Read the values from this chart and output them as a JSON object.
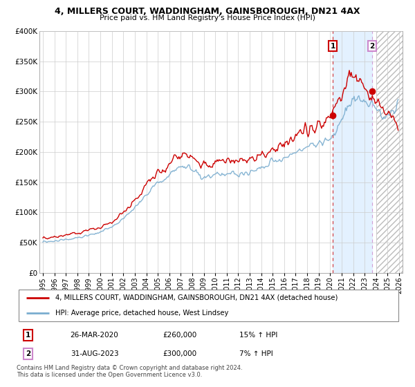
{
  "title": "4, MILLERS COURT, WADDINGHAM, GAINSBOROUGH, DN21 4AX",
  "subtitle": "Price paid vs. HM Land Registry's House Price Index (HPI)",
  "grid_color": "#cccccc",
  "line1_color": "#cc0000",
  "line2_color": "#7aadcf",
  "ylim": [
    0,
    400000
  ],
  "yticks": [
    0,
    50000,
    100000,
    150000,
    200000,
    250000,
    300000,
    350000,
    400000
  ],
  "ytick_labels": [
    "£0",
    "£50K",
    "£100K",
    "£150K",
    "£200K",
    "£250K",
    "£300K",
    "£350K",
    "£400K"
  ],
  "legend1_label": "4, MILLERS COURT, WADDINGHAM, GAINSBOROUGH, DN21 4AX (detached house)",
  "legend2_label": "HPI: Average price, detached house, West Lindsey",
  "transaction1_date": "26-MAR-2020",
  "transaction1_price": "£260,000",
  "transaction1_hpi": "15% ↑ HPI",
  "transaction2_date": "31-AUG-2023",
  "transaction2_price": "£300,000",
  "transaction2_hpi": "7% ↑ HPI",
  "footnote": "Contains HM Land Registry data © Crown copyright and database right 2024.\nThis data is licensed under the Open Government Licence v3.0.",
  "shade_start": 2020.23,
  "shade_end": 2023.66,
  "shade_color": "#ddeeff",
  "hatch_start": 2024.0,
  "vline1_x": 2020.23,
  "vline2_x": 2023.66,
  "marker1_y": 260000,
  "marker2_y": 300000,
  "box1_color": "#cc0000",
  "box2_color": "#cc99cc",
  "xtick_years": [
    1995,
    1996,
    1997,
    1998,
    1999,
    2000,
    2001,
    2002,
    2003,
    2004,
    2005,
    2006,
    2007,
    2008,
    2009,
    2010,
    2011,
    2012,
    2013,
    2014,
    2015,
    2016,
    2017,
    2018,
    2019,
    2020,
    2021,
    2022,
    2023,
    2024,
    2025,
    2026
  ],
  "xlim_left": 1994.7,
  "xlim_right": 2026.3
}
